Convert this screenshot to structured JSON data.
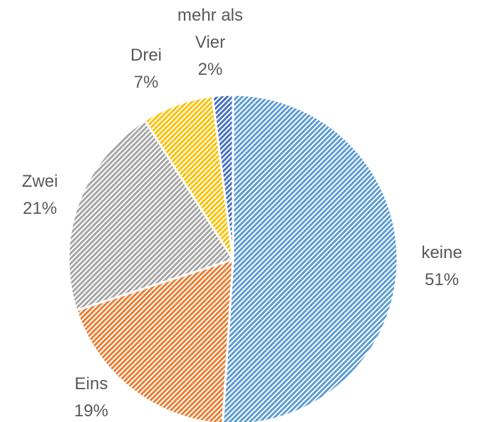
{
  "chart_data": {
    "type": "pie",
    "categories": [
      "keine",
      "Eins",
      "Zwei",
      "Drei",
      "mehr als Vier"
    ],
    "values": [
      51,
      19,
      21,
      7,
      2
    ],
    "value_labels": [
      "51%",
      "19%",
      "21%",
      "7%",
      "2%"
    ],
    "colors": [
      "#5b9bd5",
      "#ed7d31",
      "#a5a5a5",
      "#ffc000",
      "#4472c4"
    ]
  }
}
